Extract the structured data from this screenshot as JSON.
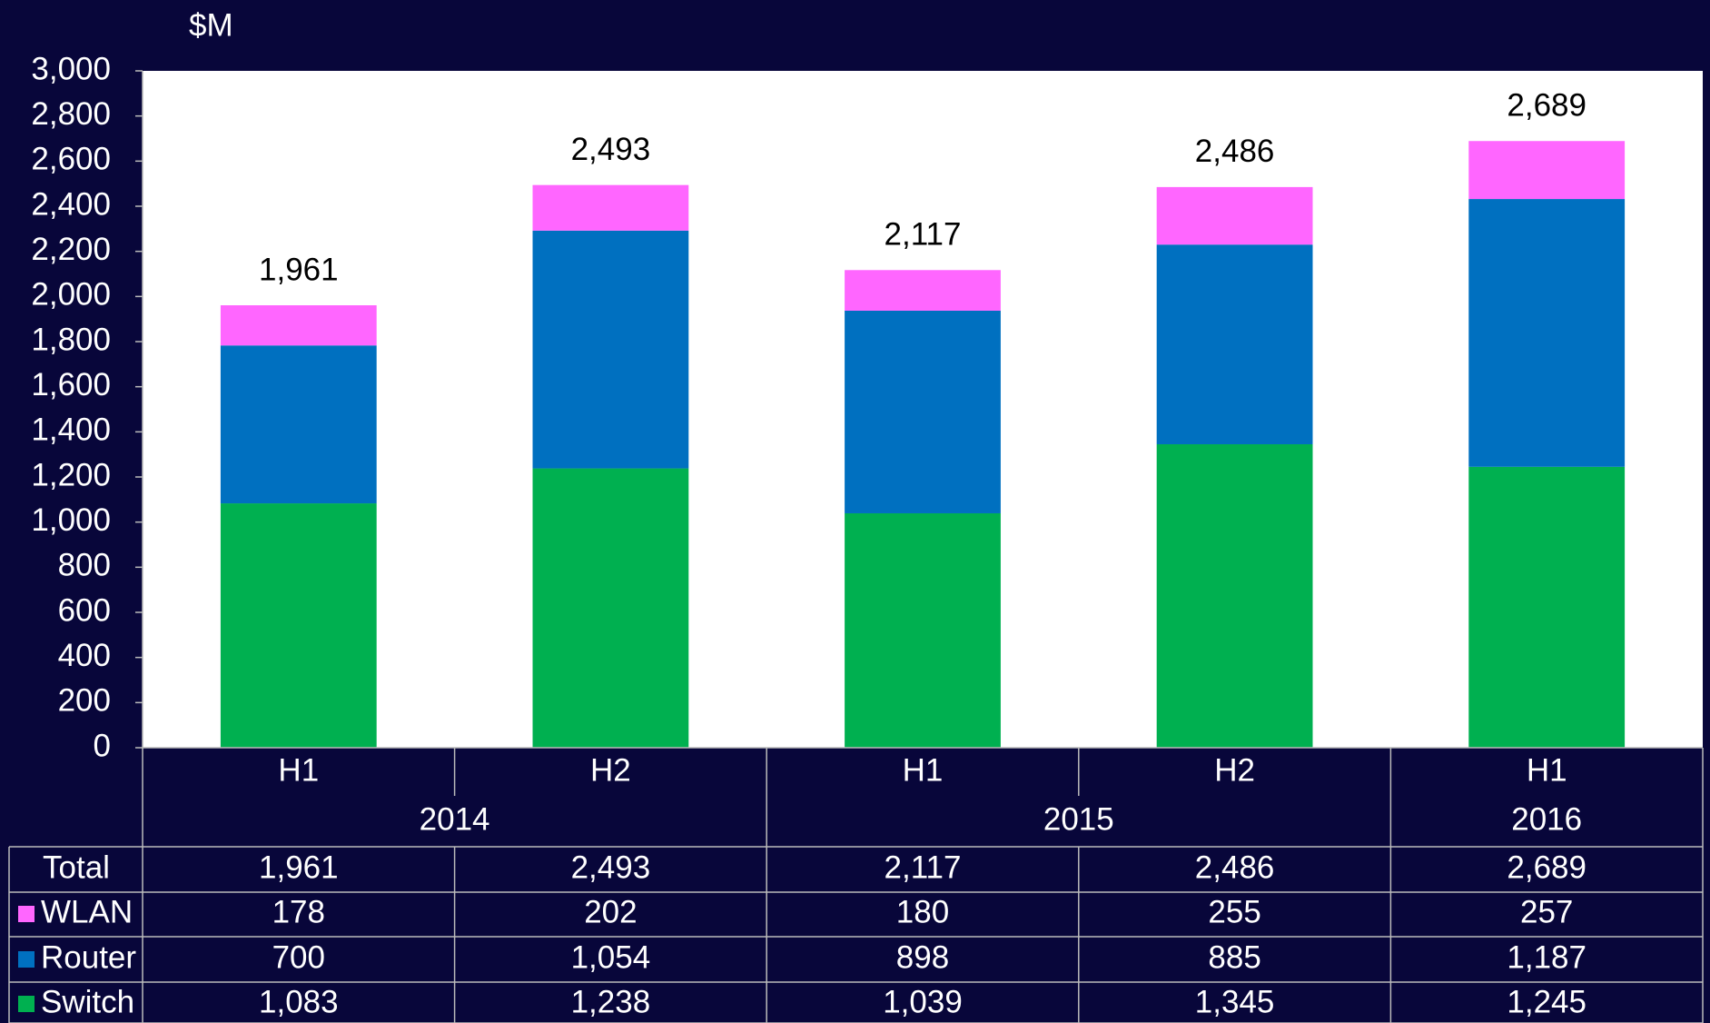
{
  "chart_data": {
    "type": "stacked_bar",
    "y_unit": "$M",
    "groups": [
      {
        "name": "2014",
        "categories": [
          "H1",
          "H2"
        ]
      },
      {
        "name": "2015",
        "categories": [
          "H1",
          "H2"
        ]
      },
      {
        "name": "2016",
        "categories": [
          "H1"
        ]
      }
    ],
    "series": [
      {
        "name": "Switch",
        "color": "#00b050",
        "values": [
          1083,
          1238,
          1039,
          1345,
          1245
        ],
        "value_labels": [
          "1,083",
          "1,238",
          "1,039",
          "1,345",
          "1,245"
        ]
      },
      {
        "name": "Router",
        "color": "#0070c0",
        "values": [
          700,
          1054,
          898,
          885,
          1187
        ],
        "value_labels": [
          "700",
          "1,054",
          "898",
          "885",
          "1,187"
        ]
      },
      {
        "name": "WLAN",
        "color": "#ff66ff",
        "values": [
          178,
          202,
          180,
          255,
          257
        ],
        "value_labels": [
          "178",
          "202",
          "180",
          "255",
          "257"
        ]
      }
    ],
    "total_name": "Total",
    "totals": [
      1961,
      2493,
      2117,
      2486,
      2689
    ],
    "total_labels": [
      "1,961",
      "2,493",
      "2,117",
      "2,486",
      "2,689"
    ],
    "ylim": [
      0,
      3000
    ],
    "yticks": [
      0,
      200,
      400,
      600,
      800,
      {
        "value": 1000,
        "label": "1,000"
      },
      {
        "value": 1200,
        "label": "1,200"
      },
      {
        "value": 1400,
        "label": "1,400"
      },
      {
        "value": 1600,
        "label": "1,600"
      },
      {
        "value": 1800,
        "label": "1,800"
      },
      {
        "value": 2000,
        "label": "2,000"
      },
      {
        "value": 2200,
        "label": "2,200"
      },
      {
        "value": 2400,
        "label": "2,400"
      },
      {
        "value": 2600,
        "label": "2,600"
      },
      {
        "value": 2800,
        "label": "2,800"
      },
      {
        "value": 3000,
        "label": "3,000"
      }
    ]
  }
}
